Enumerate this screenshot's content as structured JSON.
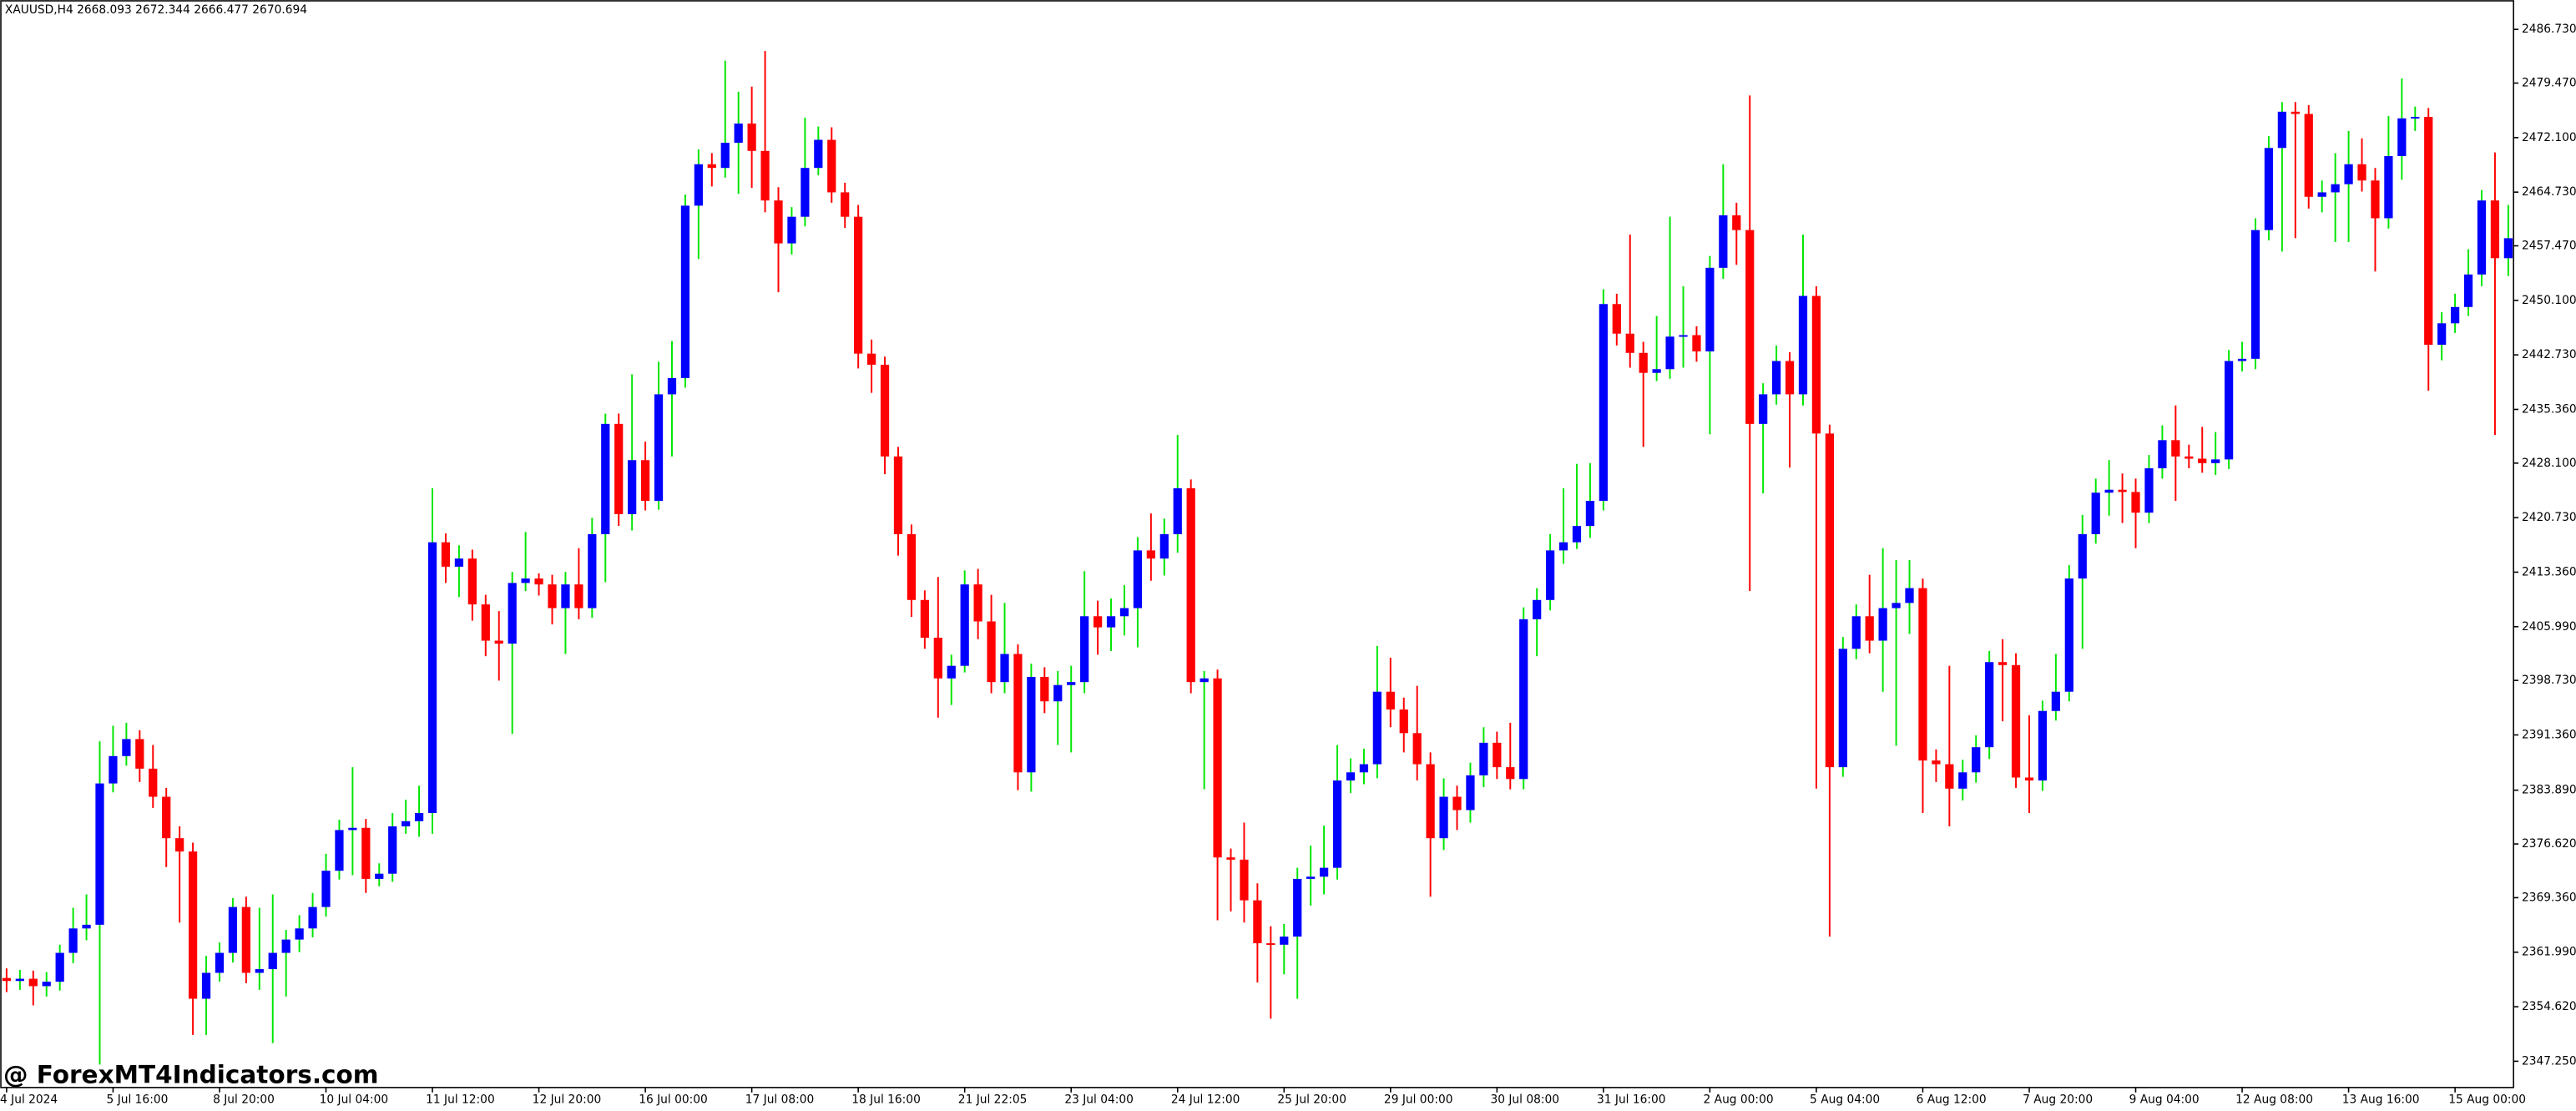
{
  "chart_data": {
    "type": "candlestick",
    "title": "XAUUSD,H4  2668.093 2672.344 2666.477 2670.694",
    "categories": [
      "4 Jul 2024",
      null,
      null,
      null,
      null,
      null,
      null,
      null,
      "5 Jul 16:00",
      null,
      null,
      null,
      null,
      null,
      null,
      null,
      "8 Jul 20:00",
      null,
      null,
      null,
      null,
      null,
      null,
      null,
      "10 Jul 04:00",
      null,
      null,
      null,
      null,
      null,
      null,
      null,
      "11 Jul 12:00",
      null,
      null,
      null,
      null,
      null,
      null,
      null,
      "12 Jul 20:00",
      null,
      null,
      null,
      null,
      null,
      null,
      null,
      "16 Jul 00:00",
      null,
      null,
      null,
      null,
      null,
      null,
      null,
      "17 Jul 08:00",
      null,
      null,
      null,
      null,
      null,
      null,
      null,
      "18 Jul 16:00",
      null,
      null,
      null,
      null,
      null,
      null,
      null,
      "21 Jul 22:05",
      null,
      null,
      null,
      null,
      null,
      null,
      null,
      "23 Jul 04:00",
      null,
      null,
      null,
      null,
      null,
      null,
      null,
      "24 Jul 12:00",
      null,
      null,
      null,
      null,
      null,
      null,
      null,
      "25 Jul 20:00",
      null,
      null,
      null,
      null,
      null,
      null,
      null,
      "29 Jul 00:00",
      null,
      null,
      null,
      null,
      null,
      null,
      null,
      "30 Jul 08:00",
      null,
      null,
      null,
      null,
      null,
      null,
      null,
      "31 Jul 16:00",
      null,
      null,
      null,
      null,
      null,
      null,
      null,
      "2 Aug 00:00",
      null,
      null,
      null,
      null,
      null,
      null,
      null,
      "5 Aug 04:00",
      null,
      null,
      null,
      null,
      null,
      null,
      null,
      "6 Aug 12:00",
      null,
      null,
      null,
      null,
      null,
      null,
      null,
      "7 Aug 20:00",
      null,
      null,
      null,
      null,
      null,
      null,
      null,
      "9 Aug 04:00",
      null,
      null,
      null,
      null,
      null,
      null,
      null,
      "12 Aug 08:00",
      null,
      null,
      null,
      null,
      null,
      null,
      null,
      "13 Aug 16:00",
      null,
      null,
      null,
      null,
      null,
      null,
      null,
      "15 Aug 00:00",
      null,
      null,
      null,
      null
    ],
    "open": [
      2358.5,
      2358.1,
      2358.4,
      2357.4,
      2358.0,
      2361.9,
      2365.2,
      2365.7,
      2384.8,
      2388.5,
      2390.8,
      2386.8,
      2383.0,
      2377.4,
      2375.6,
      2355.7,
      2359.2,
      2361.9,
      2368.1,
      2359.2,
      2359.7,
      2361.9,
      2363.7,
      2365.2,
      2368.1,
      2373.0,
      2378.5,
      2378.8,
      2371.9,
      2372.6,
      2379.0,
      2379.7,
      2380.8,
      2417.4,
      2414.1,
      2415.2,
      2409.0,
      2404.1,
      2403.7,
      2411.9,
      2412.5,
      2411.7,
      2408.5,
      2411.7,
      2408.5,
      2418.5,
      2433.4,
      2421.2,
      2428.5,
      2423.0,
      2437.4,
      2439.6,
      2462.9,
      2468.5,
      2468.0,
      2471.4,
      2474.0,
      2470.3,
      2463.6,
      2457.8,
      2461.4,
      2468.0,
      2471.8,
      2464.7,
      2461.4,
      2442.9,
      2441.4,
      2429.0,
      2418.5,
      2409.6,
      2404.5,
      2399.0,
      2400.7,
      2411.7,
      2406.7,
      2398.5,
      2402.3,
      2386.3,
      2399.2,
      2395.9,
      2398.1,
      2398.5,
      2407.4,
      2405.9,
      2407.4,
      2408.5,
      2416.3,
      2415.2,
      2418.5,
      2424.7,
      2398.5,
      2399.0,
      2374.8,
      2374.5,
      2369.0,
      2363.2,
      2363.0,
      2364.1,
      2371.9,
      2372.2,
      2373.4,
      2385.2,
      2386.3,
      2387.4,
      2397.2,
      2394.8,
      2391.6,
      2387.4,
      2377.4,
      2383.0,
      2381.2,
      2385.9,
      2390.3,
      2387.0,
      2385.4,
      2407.0,
      2409.6,
      2416.3,
      2417.4,
      2419.6,
      2423.0,
      2449.6,
      2445.6,
      2443.0,
      2440.3,
      2440.8,
      2445.2,
      2445.4,
      2443.2,
      2454.5,
      2461.6,
      2459.6,
      2433.4,
      2437.4,
      2441.9,
      2437.4,
      2450.7,
      2432.1,
      2387.0,
      2403.0,
      2407.4,
      2404.1,
      2408.5,
      2409.2,
      2411.2,
      2387.9,
      2387.4,
      2384.1,
      2386.3,
      2389.7,
      2401.2,
      2400.8,
      2385.6,
      2385.2,
      2394.6,
      2397.2,
      2412.5,
      2418.5,
      2424.1,
      2424.5,
      2424.2,
      2421.4,
      2427.4,
      2431.2,
      2429.0,
      2428.7,
      2428.1,
      2428.6,
      2441.9,
      2442.2,
      2459.6,
      2470.7,
      2475.6,
      2475.3,
      2464.1,
      2464.7,
      2465.8,
      2468.5,
      2466.3,
      2461.2,
      2469.6,
      2474.7,
      2474.9,
      2444.1,
      2447.0,
      2449.2,
      2453.6,
      2463.6,
      2455.8
    ],
    "high": [
      2359.8,
      2359.6,
      2359.5,
      2359.3,
      2363.0,
      2368.0,
      2369.8,
      2390.5,
      2392.6,
      2393.0,
      2392.0,
      2390.0,
      2384.2,
      2379.0,
      2376.8,
      2361.5,
      2363.3,
      2369.3,
      2369.5,
      2368.0,
      2369.8,
      2365.0,
      2367.0,
      2370.0,
      2375.3,
      2379.9,
      2387.0,
      2380.0,
      2374.0,
      2380.8,
      2382.6,
      2384.5,
      2424.7,
      2418.6,
      2417.0,
      2416.4,
      2410.3,
      2408.1,
      2413.4,
      2418.8,
      2413.2,
      2413.0,
      2413.4,
      2416.6,
      2420.7,
      2434.8,
      2434.8,
      2440.1,
      2431.0,
      2441.8,
      2444.6,
      2464.4,
      2470.5,
      2470.0,
      2482.5,
      2478.3,
      2479.0,
      2483.8,
      2465.4,
      2462.7,
      2474.8,
      2473.6,
      2473.5,
      2466.0,
      2463.0,
      2444.8,
      2442.5,
      2430.3,
      2419.8,
      2410.9,
      2412.7,
      2402.2,
      2413.6,
      2413.8,
      2410.3,
      2409.2,
      2403.6,
      2401.0,
      2400.5,
      2400.0,
      2400.7,
      2413.5,
      2409.5,
      2409.8,
      2411.6,
      2418.1,
      2421.3,
      2420.6,
      2431.9,
      2425.9,
      2400.0,
      2400.2,
      2376.0,
      2379.5,
      2371.3,
      2365.5,
      2365.8,
      2373.4,
      2376.4,
      2379.1,
      2390.0,
      2388.2,
      2389.5,
      2403.4,
      2401.8,
      2396.4,
      2398.0,
      2389.0,
      2385.5,
      2384.5,
      2387.6,
      2392.4,
      2391.8,
      2393.0,
      2408.6,
      2411.2,
      2418.5,
      2424.7,
      2428.0,
      2428.1,
      2451.6,
      2451.0,
      2459.0,
      2444.5,
      2448.0,
      2461.4,
      2452.0,
      2446.6,
      2456.1,
      2468.5,
      2463.3,
      2477.8,
      2438.9,
      2444.0,
      2443.1,
      2459.0,
      2452.0,
      2433.3,
      2404.6,
      2409.0,
      2413.0,
      2416.6,
      2415.0,
      2415.0,
      2412.5,
      2389.4,
      2400.7,
      2388.0,
      2391.3,
      2402.7,
      2404.3,
      2402.4,
      2394.0,
      2396.0,
      2402.3,
      2414.3,
      2421.1,
      2426.0,
      2428.5,
      2426.7,
      2426.0,
      2429.2,
      2433.2,
      2435.9,
      2430.6,
      2433.0,
      2432.3,
      2443.4,
      2444.5,
      2461.2,
      2472.3,
      2476.9,
      2476.9,
      2476.5,
      2466.3,
      2470.0,
      2473.0,
      2472.0,
      2468.0,
      2475.0,
      2480.1,
      2476.3,
      2476.1,
      2448.5,
      2451.0,
      2457.0,
      2465.0,
      2470.1,
      2463.0
    ],
    "low": [
      2356.6,
      2356.9,
      2354.8,
      2356.0,
      2356.8,
      2360.5,
      2363.6,
      2346.8,
      2383.6,
      2387.2,
      2385.0,
      2381.5,
      2373.5,
      2366.0,
      2350.8,
      2350.8,
      2358.0,
      2360.6,
      2357.8,
      2356.9,
      2349.7,
      2356.0,
      2362.0,
      2364.0,
      2366.8,
      2371.8,
      2372.4,
      2370.0,
      2370.9,
      2371.5,
      2378.0,
      2377.6,
      2378.0,
      2411.9,
      2410.0,
      2406.8,
      2402.0,
      2398.7,
      2391.5,
      2410.8,
      2410.2,
      2406.3,
      2402.3,
      2407.0,
      2407.2,
      2412.0,
      2419.6,
      2419.0,
      2421.7,
      2421.8,
      2429.0,
      2438.3,
      2455.7,
      2465.5,
      2466.7,
      2464.5,
      2465.3,
      2462.0,
      2451.2,
      2456.3,
      2460.1,
      2467.0,
      2463.3,
      2459.9,
      2440.9,
      2437.6,
      2426.6,
      2415.6,
      2407.3,
      2403.0,
      2393.7,
      2395.4,
      2399.8,
      2404.3,
      2397.0,
      2397.0,
      2383.9,
      2383.7,
      2394.3,
      2390.0,
      2389.0,
      2397.0,
      2402.2,
      2402.7,
      2404.8,
      2403.2,
      2412.2,
      2412.9,
      2416.0,
      2397.0,
      2384.0,
      2366.3,
      2367.5,
      2366.0,
      2357.9,
      2353.0,
      2359.0,
      2355.7,
      2368.3,
      2369.8,
      2371.8,
      2383.5,
      2384.7,
      2385.5,
      2392.4,
      2389.0,
      2385.2,
      2369.5,
      2375.8,
      2378.5,
      2379.5,
      2384.3,
      2385.4,
      2384.0,
      2384.0,
      2402.0,
      2408.2,
      2414.5,
      2416.5,
      2418.0,
      2421.7,
      2444.0,
      2441.0,
      2430.3,
      2439.2,
      2439.5,
      2441.0,
      2441.8,
      2432.0,
      2453.0,
      2454.9,
      2410.8,
      2424.0,
      2436.0,
      2427.5,
      2435.9,
      2384.1,
      2364.1,
      2385.7,
      2401.6,
      2402.4,
      2397.2,
      2389.9,
      2405.0,
      2380.8,
      2385.0,
      2379.0,
      2382.5,
      2384.9,
      2388.1,
      2393.2,
      2384.2,
      2380.8,
      2383.8,
      2393.3,
      2395.9,
      2403.0,
      2417.2,
      2421.0,
      2420.0,
      2416.6,
      2420.0,
      2426.0,
      2423.0,
      2427.4,
      2426.8,
      2426.5,
      2427.3,
      2440.5,
      2440.8,
      2458.2,
      2456.7,
      2458.5,
      2462.5,
      2462.0,
      2458.0,
      2458.0,
      2464.8,
      2454.0,
      2459.8,
      2466.4,
      2473.0,
      2437.9,
      2442.0,
      2445.7,
      2448.0,
      2452.0,
      2431.9,
      2453.4
    ],
    "close": [
      2358.1,
      2358.4,
      2357.4,
      2358.0,
      2361.9,
      2365.2,
      2365.7,
      2384.8,
      2388.5,
      2390.8,
      2386.8,
      2383.0,
      2377.4,
      2375.6,
      2355.7,
      2359.2,
      2361.9,
      2368.1,
      2359.2,
      2359.7,
      2361.9,
      2363.7,
      2365.2,
      2368.1,
      2373.0,
      2378.5,
      2378.8,
      2371.9,
      2372.6,
      2379.0,
      2379.7,
      2380.8,
      2417.4,
      2414.1,
      2415.2,
      2409.0,
      2404.1,
      2403.7,
      2411.9,
      2412.5,
      2411.7,
      2408.5,
      2411.7,
      2408.5,
      2418.5,
      2433.4,
      2421.2,
      2428.5,
      2423.0,
      2437.4,
      2439.6,
      2462.9,
      2468.5,
      2468.0,
      2471.4,
      2474.0,
      2470.3,
      2463.6,
      2457.8,
      2461.4,
      2468.0,
      2471.8,
      2464.7,
      2461.4,
      2442.9,
      2441.4,
      2429.0,
      2418.5,
      2409.6,
      2404.5,
      2399.0,
      2400.7,
      2411.7,
      2406.7,
      2398.5,
      2402.3,
      2386.3,
      2399.2,
      2395.9,
      2398.1,
      2398.5,
      2407.4,
      2405.9,
      2407.4,
      2408.5,
      2416.3,
      2415.2,
      2418.5,
      2424.7,
      2398.5,
      2399.0,
      2374.8,
      2374.5,
      2369.0,
      2363.2,
      2363.0,
      2364.1,
      2371.9,
      2372.2,
      2373.4,
      2385.2,
      2386.3,
      2387.4,
      2397.2,
      2394.8,
      2391.6,
      2387.4,
      2377.4,
      2383.0,
      2381.2,
      2385.9,
      2390.3,
      2387.0,
      2385.4,
      2407.0,
      2409.6,
      2416.3,
      2417.4,
      2419.6,
      2423.0,
      2449.6,
      2445.6,
      2443.0,
      2440.3,
      2440.8,
      2445.2,
      2445.4,
      2443.2,
      2454.5,
      2461.6,
      2459.6,
      2433.4,
      2437.4,
      2441.9,
      2437.4,
      2450.7,
      2432.1,
      2387.0,
      2403.0,
      2407.4,
      2404.1,
      2408.5,
      2409.2,
      2411.2,
      2387.9,
      2387.4,
      2384.1,
      2386.3,
      2389.7,
      2401.2,
      2400.8,
      2385.6,
      2385.2,
      2394.6,
      2397.2,
      2412.5,
      2418.5,
      2424.1,
      2424.5,
      2424.2,
      2421.4,
      2427.4,
      2431.2,
      2429.0,
      2428.7,
      2428.1,
      2428.6,
      2441.9,
      2442.2,
      2459.6,
      2470.7,
      2475.6,
      2475.3,
      2464.1,
      2464.7,
      2465.8,
      2468.5,
      2466.3,
      2461.2,
      2469.6,
      2474.7,
      2474.9,
      2444.1,
      2447.0,
      2449.2,
      2453.6,
      2463.6,
      2455.8,
      2458.5
    ],
    "up_color": "#0000ff",
    "down_color": "#ff0000",
    "up_wick_color": "#00e600",
    "down_wick_color": "#ff0000",
    "ylim": [
      2343.7,
      2490.7
    ],
    "yticks": [
      {
        "value": 2486.73,
        "label": "2486.730"
      },
      {
        "value": 2479.47,
        "label": "2479.470"
      },
      {
        "value": 2472.1,
        "label": "2472.100"
      },
      {
        "value": 2464.73,
        "label": "2464.730"
      },
      {
        "value": 2457.47,
        "label": "2457.470"
      },
      {
        "value": 2450.1,
        "label": "2450.100"
      },
      {
        "value": 2442.73,
        "label": "2442.730"
      },
      {
        "value": 2435.36,
        "label": "2435.360"
      },
      {
        "value": 2428.1,
        "label": "2428.100"
      },
      {
        "value": 2420.73,
        "label": "2420.730"
      },
      {
        "value": 2413.36,
        "label": "2413.360"
      },
      {
        "value": 2405.99,
        "label": "2405.990"
      },
      {
        "value": 2398.73,
        "label": "2398.730"
      },
      {
        "value": 2391.36,
        "label": "2391.360"
      },
      {
        "value": 2383.89,
        "label": "2383.890"
      },
      {
        "value": 2376.62,
        "label": "2376.620"
      },
      {
        "value": 2369.36,
        "label": "2369.360"
      },
      {
        "value": 2361.99,
        "label": "2361.990"
      },
      {
        "value": 2354.62,
        "label": "2354.620"
      },
      {
        "value": 2347.25,
        "label": "2347.250"
      }
    ],
    "grid": false
  },
  "watermark": "@ ForexMT4Indicators.com"
}
